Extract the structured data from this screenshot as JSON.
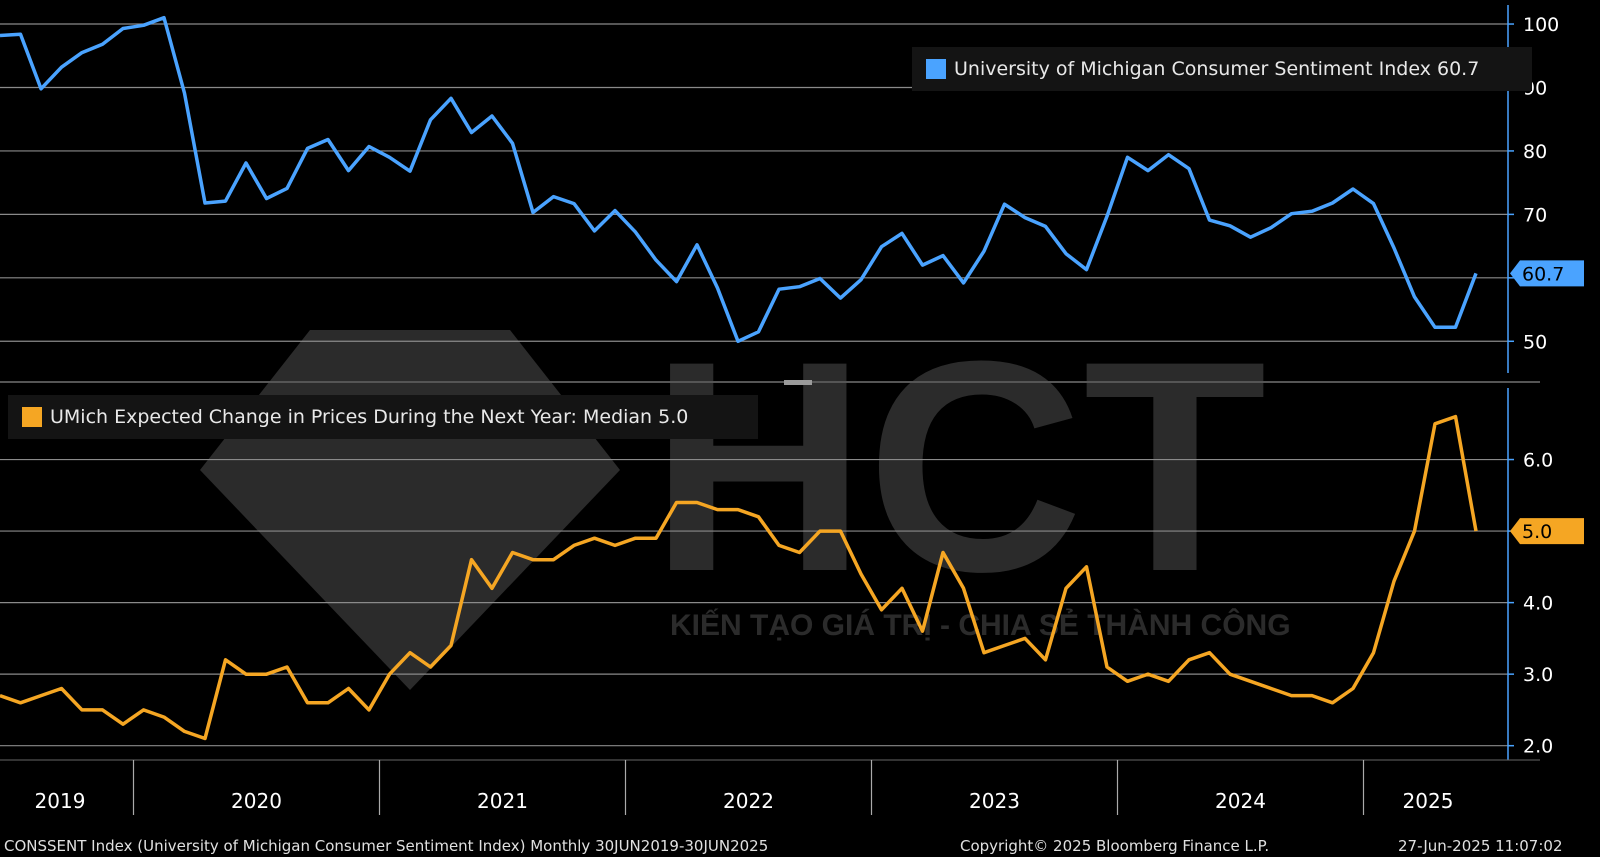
{
  "chart_data": [
    {
      "type": "line",
      "title": "",
      "series": [
        {
          "name": "University of Michigan Consumer Sentiment Index",
          "color": "#4aa3ff",
          "x": [
            "2019-06",
            "2019-07",
            "2019-08",
            "2019-09",
            "2019-10",
            "2019-11",
            "2019-12",
            "2020-01",
            "2020-02",
            "2020-03",
            "2020-04",
            "2020-05",
            "2020-06",
            "2020-07",
            "2020-08",
            "2020-09",
            "2020-10",
            "2020-11",
            "2020-12",
            "2021-01",
            "2021-02",
            "2021-03",
            "2021-04",
            "2021-05",
            "2021-06",
            "2021-07",
            "2021-08",
            "2021-09",
            "2021-10",
            "2021-11",
            "2021-12",
            "2022-01",
            "2022-02",
            "2022-03",
            "2022-04",
            "2022-05",
            "2022-06",
            "2022-07",
            "2022-08",
            "2022-09",
            "2022-10",
            "2022-11",
            "2022-12",
            "2023-01",
            "2023-02",
            "2023-03",
            "2023-04",
            "2023-05",
            "2023-06",
            "2023-07",
            "2023-08",
            "2023-09",
            "2023-10",
            "2023-11",
            "2023-12",
            "2024-01",
            "2024-02",
            "2024-03",
            "2024-04",
            "2024-05",
            "2024-06",
            "2024-07",
            "2024-08",
            "2024-09",
            "2024-10",
            "2024-11",
            "2024-12",
            "2025-01",
            "2025-02",
            "2025-03",
            "2025-04",
            "2025-05",
            "2025-06"
          ],
          "values": [
            98.2,
            98.4,
            89.8,
            93.2,
            95.5,
            96.8,
            99.3,
            99.8,
            101.0,
            89.1,
            71.8,
            72.1,
            78.1,
            72.5,
            74.1,
            80.4,
            81.8,
            76.9,
            80.7,
            79.0,
            76.8,
            84.9,
            88.3,
            82.9,
            85.5,
            81.2,
            70.3,
            72.8,
            71.7,
            67.4,
            70.6,
            67.2,
            62.8,
            59.4,
            65.2,
            58.4,
            50.0,
            51.5,
            58.2,
            58.6,
            59.9,
            56.8,
            59.7,
            64.9,
            67.0,
            62.0,
            63.5,
            59.2,
            64.2,
            71.6,
            69.5,
            68.1,
            63.8,
            61.3,
            69.7,
            79.0,
            76.9,
            79.4,
            77.2,
            69.1,
            68.2,
            66.4,
            67.9,
            70.1,
            70.5,
            71.8,
            74.0,
            71.7,
            64.7,
            57.0,
            52.2,
            52.2,
            60.7
          ]
        }
      ],
      "last_value_label": "60.7",
      "ylim": [
        45,
        103
      ],
      "yticks": [
        "50",
        "60",
        "70",
        "80",
        "90",
        "100"
      ],
      "grid": true,
      "legend": "top-right",
      "legend_text": "University of Michigan Consumer Sentiment Index 60.7"
    },
    {
      "type": "line",
      "title": "",
      "series": [
        {
          "name": "UMich Expected Change in Prices During the Next Year: Median",
          "color": "#f5a623",
          "x": [
            "2019-06",
            "2019-07",
            "2019-08",
            "2019-09",
            "2019-10",
            "2019-11",
            "2019-12",
            "2020-01",
            "2020-02",
            "2020-03",
            "2020-04",
            "2020-05",
            "2020-06",
            "2020-07",
            "2020-08",
            "2020-09",
            "2020-10",
            "2020-11",
            "2020-12",
            "2021-01",
            "2021-02",
            "2021-03",
            "2021-04",
            "2021-05",
            "2021-06",
            "2021-07",
            "2021-08",
            "2021-09",
            "2021-10",
            "2021-11",
            "2021-12",
            "2022-01",
            "2022-02",
            "2022-03",
            "2022-04",
            "2022-05",
            "2022-06",
            "2022-07",
            "2022-08",
            "2022-09",
            "2022-10",
            "2022-11",
            "2022-12",
            "2023-01",
            "2023-02",
            "2023-03",
            "2023-04",
            "2023-05",
            "2023-06",
            "2023-07",
            "2023-08",
            "2023-09",
            "2023-10",
            "2023-11",
            "2023-12",
            "2024-01",
            "2024-02",
            "2024-03",
            "2024-04",
            "2024-05",
            "2024-06",
            "2024-07",
            "2024-08",
            "2024-09",
            "2024-10",
            "2024-11",
            "2024-12",
            "2025-01",
            "2025-02",
            "2025-03",
            "2025-04",
            "2025-05",
            "2025-06"
          ],
          "values": [
            2.7,
            2.6,
            2.7,
            2.8,
            2.5,
            2.5,
            2.3,
            2.5,
            2.4,
            2.2,
            2.1,
            3.2,
            3.0,
            3.0,
            3.1,
            2.6,
            2.6,
            2.8,
            2.5,
            3.0,
            3.3,
            3.1,
            3.4,
            4.6,
            4.2,
            4.7,
            4.6,
            4.6,
            4.8,
            4.9,
            4.8,
            4.9,
            4.9,
            5.4,
            5.4,
            5.3,
            5.3,
            5.2,
            4.8,
            4.7,
            5.0,
            5.0,
            4.4,
            3.9,
            4.2,
            3.6,
            4.7,
            4.2,
            3.3,
            3.4,
            3.5,
            3.2,
            4.2,
            4.5,
            3.1,
            2.9,
            3.0,
            2.9,
            3.2,
            3.3,
            3.0,
            2.9,
            2.8,
            2.7,
            2.7,
            2.6,
            2.8,
            3.3,
            4.3,
            5.0,
            6.5,
            6.6,
            5.0
          ]
        }
      ],
      "last_value_label": "5.0",
      "ylim": [
        1.8,
        7.0
      ],
      "yticks": [
        "2.0",
        "3.0",
        "4.0",
        "5.0",
        "6.0"
      ],
      "grid": true,
      "legend": "top-left",
      "legend_text": "UMich Expected Change in Prices During the Next Year: Median 5.0"
    }
  ],
  "x_axis": {
    "year_labels": [
      "2019",
      "2020",
      "2021",
      "2022",
      "2023",
      "2024",
      "2025"
    ]
  },
  "watermark": {
    "logo_text": "HCT",
    "tagline": "KIẾN TẠO GIÁ TRỊ - CHIA SẺ THÀNH CÔNG"
  },
  "footer": {
    "left": "CONSSENT Index (University of Michigan Consumer Sentiment Index)  Monthly 30JUN2019-30JUN2025",
    "copyright": "Copyright© 2025 Bloomberg Finance L.P.",
    "timestamp": "27-Jun-2025 11:07:02"
  },
  "colors": {
    "background": "#000000",
    "grid": "#7a7a7a",
    "sentiment": "#4aa3ff",
    "prices": "#f5a623"
  }
}
